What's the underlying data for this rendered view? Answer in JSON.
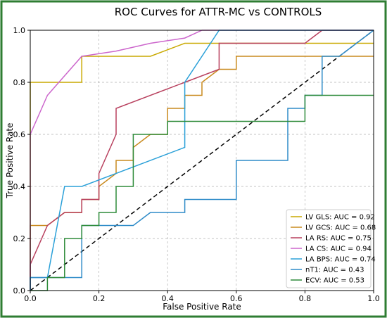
{
  "chart_data": {
    "type": "line",
    "title": "ROC Curves for ATTR-MC vs  CONTROLS",
    "xlabel": "False Positive Rate",
    "ylabel": "True Positive Rate",
    "xlim": [
      0,
      1
    ],
    "ylim": [
      0,
      1
    ],
    "xticks": [
      "0.0",
      "0.2",
      "0.4",
      "0.6",
      "0.8",
      "1.0"
    ],
    "yticks": [
      "0.0",
      "0.2",
      "0.4",
      "0.6",
      "0.8",
      "1.0"
    ],
    "grid": true,
    "legend_position": "lower-right",
    "diagonal_reference": true,
    "series": [
      {
        "name": "LV GLS: AUC = 0.92",
        "color": "#c9a900",
        "points": [
          [
            0,
            0
          ],
          [
            0,
            0.8
          ],
          [
            0.15,
            0.8
          ],
          [
            0.15,
            0.9
          ],
          [
            0.35,
            0.9
          ],
          [
            0.45,
            0.95
          ],
          [
            1,
            0.95
          ]
        ]
      },
      {
        "name": "LV GCS: AUC = 0.68",
        "color": "#c98a1e",
        "points": [
          [
            0,
            0
          ],
          [
            0,
            0.25
          ],
          [
            0.05,
            0.25
          ],
          [
            0.1,
            0.3
          ],
          [
            0.15,
            0.3
          ],
          [
            0.15,
            0.35
          ],
          [
            0.2,
            0.35
          ],
          [
            0.2,
            0.4
          ],
          [
            0.25,
            0.45
          ],
          [
            0.25,
            0.5
          ],
          [
            0.3,
            0.5
          ],
          [
            0.3,
            0.55
          ],
          [
            0.35,
            0.6
          ],
          [
            0.4,
            0.6
          ],
          [
            0.4,
            0.7
          ],
          [
            0.45,
            0.7
          ],
          [
            0.45,
            0.75
          ],
          [
            0.5,
            0.75
          ],
          [
            0.5,
            0.8
          ],
          [
            0.55,
            0.85
          ],
          [
            0.6,
            0.85
          ],
          [
            0.6,
            0.9
          ],
          [
            1,
            0.9
          ]
        ]
      },
      {
        "name": "LA RS: AUC = 0.75",
        "color": "#b8405e",
        "points": [
          [
            0,
            0
          ],
          [
            0,
            0.1
          ],
          [
            0.05,
            0.25
          ],
          [
            0.1,
            0.3
          ],
          [
            0.15,
            0.3
          ],
          [
            0.15,
            0.35
          ],
          [
            0.2,
            0.35
          ],
          [
            0.2,
            0.45
          ],
          [
            0.25,
            0.6
          ],
          [
            0.25,
            0.7
          ],
          [
            0.45,
            0.8
          ],
          [
            0.55,
            0.85
          ],
          [
            0.55,
            0.95
          ],
          [
            0.8,
            0.95
          ],
          [
            0.85,
            1.0
          ],
          [
            1,
            1.0
          ]
        ]
      },
      {
        "name": "LA CS: AUC = 0.94",
        "color": "#cc66cc",
        "points": [
          [
            0,
            0
          ],
          [
            0,
            0.6
          ],
          [
            0.05,
            0.75
          ],
          [
            0.15,
            0.9
          ],
          [
            0.25,
            0.92
          ],
          [
            0.35,
            0.95
          ],
          [
            0.45,
            0.97
          ],
          [
            0.5,
            1.0
          ],
          [
            1,
            1.0
          ]
        ]
      },
      {
        "name": "LA BPS: AUC = 0.74",
        "color": "#2aa0d8",
        "points": [
          [
            0,
            0
          ],
          [
            0,
            0.05
          ],
          [
            0.05,
            0.05
          ],
          [
            0.1,
            0.4
          ],
          [
            0.15,
            0.4
          ],
          [
            0.45,
            0.55
          ],
          [
            0.45,
            0.8
          ],
          [
            0.55,
            1.0
          ],
          [
            1,
            1.0
          ]
        ]
      },
      {
        "name": "nT1: AUC = 0.43",
        "color": "#2e8bc8",
        "points": [
          [
            0,
            0
          ],
          [
            0,
            0.05
          ],
          [
            0.15,
            0.05
          ],
          [
            0.15,
            0.25
          ],
          [
            0.3,
            0.25
          ],
          [
            0.35,
            0.3
          ],
          [
            0.45,
            0.3
          ],
          [
            0.45,
            0.35
          ],
          [
            0.6,
            0.35
          ],
          [
            0.6,
            0.5
          ],
          [
            0.75,
            0.5
          ],
          [
            0.75,
            0.7
          ],
          [
            0.8,
            0.7
          ],
          [
            0.8,
            0.75
          ],
          [
            0.85,
            0.75
          ],
          [
            0.85,
            0.9
          ],
          [
            0.9,
            0.9
          ],
          [
            0.95,
            0.95
          ],
          [
            1,
            1.0
          ]
        ]
      },
      {
        "name": "ECV: AUC = 0.53",
        "color": "#2e8b3a",
        "points": [
          [
            0,
            0
          ],
          [
            0.05,
            0
          ],
          [
            0.05,
            0.05
          ],
          [
            0.1,
            0.05
          ],
          [
            0.1,
            0.2
          ],
          [
            0.15,
            0.2
          ],
          [
            0.15,
            0.25
          ],
          [
            0.2,
            0.25
          ],
          [
            0.2,
            0.3
          ],
          [
            0.25,
            0.3
          ],
          [
            0.25,
            0.4
          ],
          [
            0.3,
            0.4
          ],
          [
            0.3,
            0.6
          ],
          [
            0.4,
            0.6
          ],
          [
            0.4,
            0.65
          ],
          [
            0.8,
            0.65
          ],
          [
            0.8,
            0.75
          ],
          [
            1,
            0.75
          ]
        ]
      }
    ]
  }
}
